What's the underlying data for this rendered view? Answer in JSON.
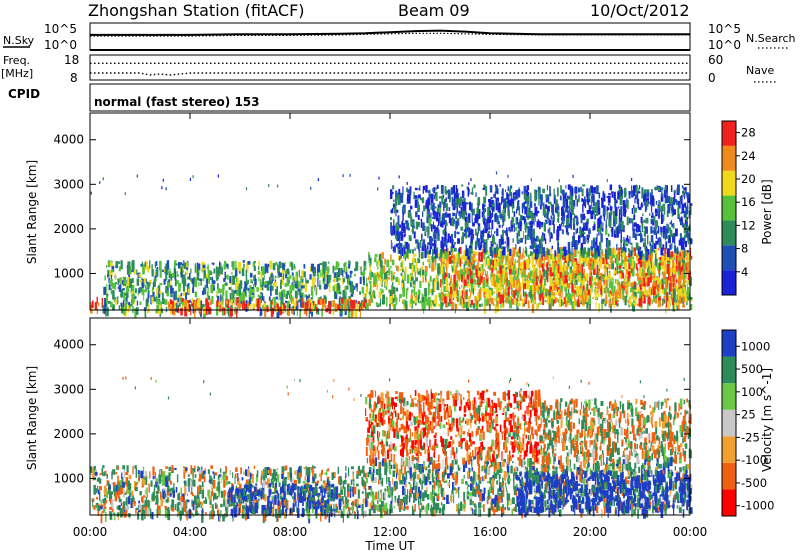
{
  "header": {
    "title": "Zhongshan Station (fitACF)",
    "beam": "Beam 09",
    "date": "10/Oct/2012"
  },
  "top_panels": {
    "nsky_label": "N.Sky",
    "nsearch_label": "N.Search",
    "nsky_ticks": [
      "10^5",
      "10^0"
    ],
    "nsearch_ticks": [
      "10^5",
      "10^0"
    ],
    "freq_label_1": "Freq.",
    "freq_label_2": "[MHz]",
    "freq_ticks": [
      "18",
      "8"
    ],
    "nave_label": "Nave",
    "nave_ticks": [
      "60",
      "0"
    ],
    "cpid_label": "CPID",
    "cpid_text": "normal (fast stereo) 153"
  },
  "x_axis": {
    "label": "Time UT",
    "ticks": [
      "00:00",
      "04:00",
      "08:00",
      "12:00",
      "16:00",
      "20:00",
      "00:00"
    ],
    "hours": [
      0,
      4,
      8,
      12,
      16,
      20,
      24
    ]
  },
  "colors": {
    "power": [
      "#1a22d6",
      "#1f4fb5",
      "#2e8c5a",
      "#56c23a",
      "#f0d81c",
      "#f08a1c",
      "#f0231c"
    ],
    "velocity": [
      "#ff0000",
      "#f06010",
      "#f0a030",
      "#c8c8c8",
      "#6ac845",
      "#2e8c5a",
      "#1d3ec5"
    ],
    "velocity_display": [
      "#1d3ec5",
      "#2e8c5a",
      "#6ac845",
      "#c8c8c8",
      "#f0a030",
      "#f06010",
      "#ff0000"
    ]
  },
  "chart_data": [
    {
      "type": "line",
      "title": "N.Sky / N.Search",
      "x": [
        0,
        2,
        4,
        6,
        8,
        10,
        11,
        12,
        13,
        14,
        15,
        16,
        18,
        20,
        22,
        24
      ],
      "series": [
        {
          "name": "N.Sky",
          "values": [
            2.8,
            2.8,
            2.8,
            2.9,
            2.9,
            3.0,
            3.1,
            3.3,
            3.5,
            3.6,
            3.4,
            3.1,
            2.9,
            2.9,
            2.9,
            2.9
          ]
        },
        {
          "name": "N.Search",
          "values": [
            2.6,
            2.6,
            2.6,
            2.7,
            2.7,
            2.8,
            2.9,
            3.0,
            3.1,
            3.1,
            3.0,
            2.9,
            2.8,
            2.8,
            2.8,
            2.8
          ]
        }
      ],
      "ylim": [
        0,
        5
      ]
    },
    {
      "type": "line",
      "title": "Freq. / Nave",
      "x": [
        0,
        2,
        2.4,
        2.8,
        3.2,
        4,
        8,
        12,
        16,
        20,
        24
      ],
      "series": [
        {
          "name": "Freq.",
          "values": [
            10.8,
            10.8,
            10.0,
            10.4,
            10.0,
            10.8,
            10.8,
            10.8,
            10.8,
            10.8,
            10.8
          ]
        },
        {
          "name": "Nave",
          "values": [
            40,
            40,
            40,
            40,
            40,
            40,
            40,
            40,
            40,
            40,
            40
          ]
        }
      ],
      "ylim_freq": [
        8,
        18
      ],
      "ylim_nave": [
        0,
        60
      ]
    },
    {
      "type": "heatmap",
      "title": "Power",
      "xlabel": "Time UT",
      "ylabel": "Slant Range [km]",
      "xlim": [
        0,
        24
      ],
      "ylim": [
        180,
        4600
      ],
      "yticks": [
        1000,
        2000,
        3000,
        4000
      ],
      "colorbar_label": "Power [dB]",
      "colorbar_ticks": [
        4,
        8,
        12,
        16,
        20,
        24,
        28
      ],
      "colorbar_range": [
        0,
        30
      ],
      "x": [
        0,
        2,
        4,
        6,
        8,
        10,
        12,
        14,
        16,
        18,
        20,
        22,
        24
      ],
      "regions": [
        {
          "t": [
            0,
            0.6
          ],
          "r": [
            200,
            500
          ],
          "power": 28
        },
        {
          "t": [
            0.5,
            11
          ],
          "r": [
            200,
            1300
          ],
          "power": 12
        },
        {
          "t": [
            3,
            11
          ],
          "r": [
            200,
            450
          ],
          "power": 26
        },
        {
          "t": [
            11,
            24
          ],
          "r": [
            300,
            1500
          ],
          "power": 16
        },
        {
          "t": [
            14,
            24
          ],
          "r": [
            400,
            1600
          ],
          "power": 22
        },
        {
          "t": [
            12,
            24
          ],
          "r": [
            1500,
            3000
          ],
          "power": 6
        }
      ]
    },
    {
      "type": "heatmap",
      "title": "Velocity",
      "xlabel": "Time UT",
      "ylabel": "Slant Range [km]",
      "xlim": [
        0,
        24
      ],
      "ylim": [
        180,
        4600
      ],
      "yticks": [
        1000,
        2000,
        3000,
        4000
      ],
      "colorbar_label": "Velocity [m s^-1]",
      "colorbar_ticks": [
        1000,
        500,
        100,
        25,
        -25,
        -100,
        -500,
        -1000
      ],
      "regions": [
        {
          "t": [
            0,
            11
          ],
          "r": [
            200,
            1300
          ],
          "velocity": 150
        },
        {
          "t": [
            5.5,
            10
          ],
          "r": [
            300,
            900
          ],
          "velocity": 800
        },
        {
          "t": [
            11,
            24
          ],
          "r": [
            300,
            1500
          ],
          "velocity": 200
        },
        {
          "t": [
            17,
            24
          ],
          "r": [
            300,
            1200
          ],
          "velocity": 900
        },
        {
          "t": [
            11,
            18
          ],
          "r": [
            1500,
            3000
          ],
          "velocity": -300
        },
        {
          "t": [
            18,
            24
          ],
          "r": [
            1500,
            2800
          ],
          "velocity": 0
        }
      ]
    }
  ]
}
